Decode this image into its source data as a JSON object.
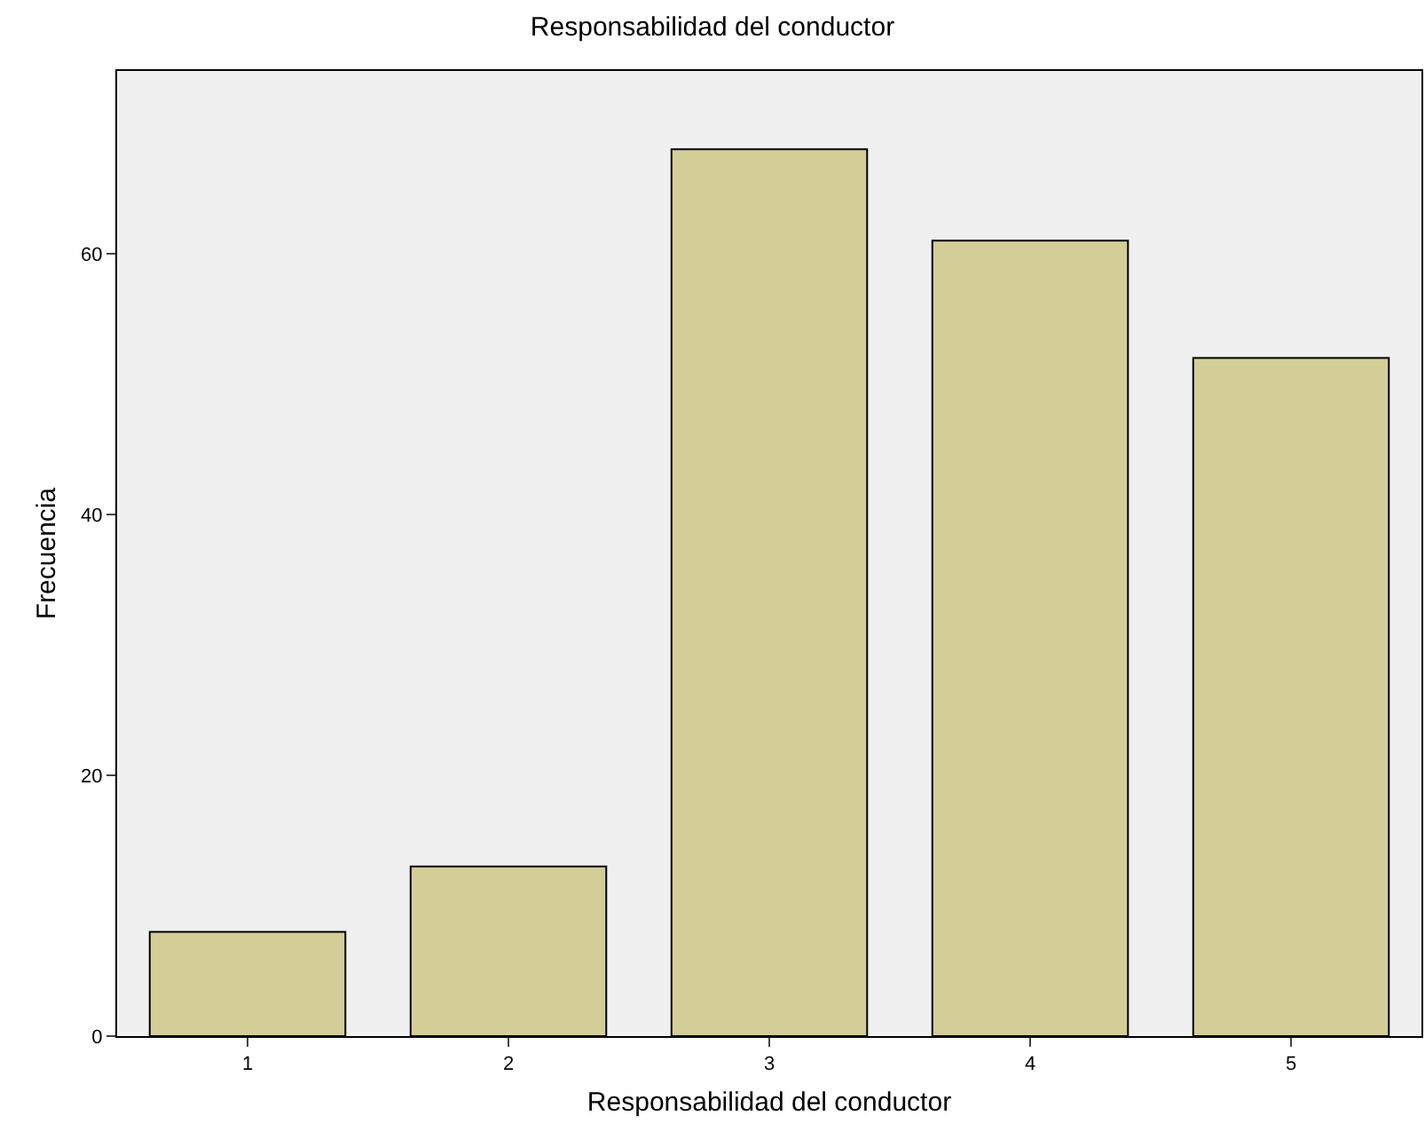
{
  "chart_data": {
    "type": "bar",
    "title": "Responsabilidad del conductor",
    "xlabel": "Responsabilidad del conductor",
    "ylabel": "Frecuencia",
    "categories": [
      "1",
      "2",
      "3",
      "4",
      "5"
    ],
    "values": [
      8,
      13,
      68,
      61,
      52
    ],
    "color": "#d3ce97",
    "ylim": [
      0,
      74
    ],
    "yticks": [
      0,
      20,
      40,
      60
    ],
    "grid": false
  }
}
